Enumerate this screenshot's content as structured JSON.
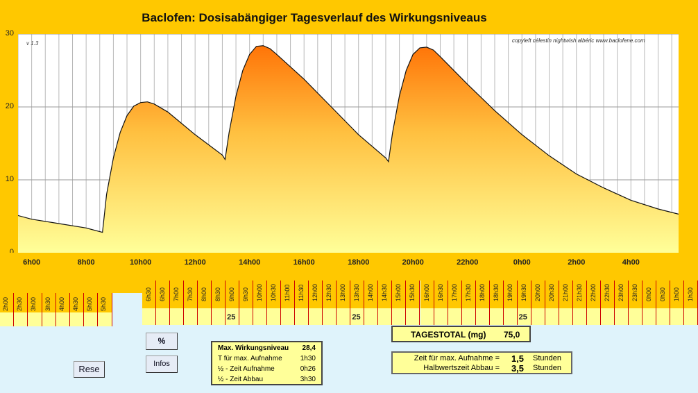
{
  "chart_data": {
    "type": "area",
    "title": "Baclofen: Dosisabängiger Tagesverlauf des Wirkungsniveaus",
    "version": "v 1.3",
    "copyright": "copyleft  célestin  nightwish  albéric  www.baclofene.com",
    "ylim": [
      0,
      30
    ],
    "yticks": [
      0,
      10,
      20,
      30
    ],
    "xlim": [
      5.5,
      29.75
    ],
    "xunit": "hour",
    "xticks": [
      {
        "x": 6,
        "label": "6h00"
      },
      {
        "x": 8,
        "label": "8h00"
      },
      {
        "x": 10,
        "label": "10h00"
      },
      {
        "x": 12,
        "label": "12h00"
      },
      {
        "x": 14,
        "label": "14h00"
      },
      {
        "x": 16,
        "label": "16h00"
      },
      {
        "x": 18,
        "label": "18h00"
      },
      {
        "x": 20,
        "label": "20h00"
      },
      {
        "x": 22,
        "label": "22h00"
      },
      {
        "x": 24,
        "label": "0h00"
      },
      {
        "x": 26,
        "label": "2h00"
      },
      {
        "x": 28,
        "label": "4h00"
      }
    ],
    "grid": true,
    "series": [
      {
        "values_x": [
          5.5,
          6,
          7,
          8,
          8.6,
          8.75,
          9,
          9.25,
          9.5,
          9.75,
          10,
          10.25,
          10.5,
          11,
          12,
          13,
          13.1,
          13.25,
          13.5,
          13.75,
          14,
          14.25,
          14.5,
          14.75,
          15,
          16,
          17,
          18,
          19,
          19.1,
          19.25,
          19.5,
          19.75,
          20,
          20.25,
          20.5,
          20.75,
          21,
          22,
          23,
          24,
          25,
          26,
          27,
          28,
          29,
          29.75
        ],
        "values_y": [
          5.1,
          4.6,
          4.0,
          3.4,
          2.8,
          8.0,
          13.0,
          16.5,
          18.8,
          20.1,
          20.6,
          20.7,
          20.4,
          19.3,
          16.2,
          13.4,
          12.8,
          16.5,
          21.5,
          25.0,
          27.2,
          28.3,
          28.4,
          28.0,
          27.2,
          23.8,
          20.0,
          16.2,
          13.0,
          12.5,
          16.5,
          21.5,
          25.0,
          27.2,
          28.1,
          28.2,
          27.8,
          26.9,
          23.1,
          19.5,
          16.2,
          13.3,
          10.8,
          8.9,
          7.2,
          6.0,
          5.3
        ],
        "gradient_top": "#ff6a00",
        "gradient_bottom": "#ffff99"
      }
    ]
  },
  "schedule": {
    "top_slots": [
      "6h30",
      "6h30",
      "7h00",
      "7h30",
      "8h00",
      "8h30",
      "9h00",
      "9h30",
      "10h00",
      "10h30",
      "11h00",
      "11h30",
      "12h00",
      "12h30",
      "13h00",
      "13h30",
      "14h00",
      "14h30",
      "15h00",
      "15h30",
      "16h00",
      "16h30",
      "17h00",
      "17h30",
      "18h00",
      "18h30",
      "19h00",
      "19h30",
      "20h00",
      "20h30",
      "21h00",
      "21h30",
      "22h00",
      "22h30",
      "23h00",
      "23h30",
      "0h00",
      "0h30",
      "1h00",
      "1h30"
    ],
    "left_slots": [
      "2h00",
      "2h30",
      "3h00",
      "3h30",
      "4h00",
      "4h30",
      "5h00",
      "5h30"
    ],
    "doses": [
      {
        "col": 6,
        "value": "25"
      },
      {
        "col": 15,
        "value": "25"
      },
      {
        "col": 27,
        "value": "25"
      }
    ]
  },
  "buttons": {
    "percent": "%",
    "infos": "Infos",
    "reset": "Rese"
  },
  "stats": {
    "max_level_label": "Max. Wirkungsniveau",
    "max_level_value": "28,4",
    "t_max_label": "T für max. Aufnahme",
    "t_max_value": "1h30",
    "half_absorb_label": "½ - Zeit Aufnahme",
    "half_absorb_value": "0h26",
    "half_elim_label": "½ - Zeit Abbau",
    "half_elim_value": "3h30"
  },
  "total": {
    "label": "TAGESTOTAL (mg)",
    "value": "75,0"
  },
  "params": {
    "absorb_label": "Zeit für max. Aufnahme  =",
    "absorb_value": "1,5",
    "absorb_unit": "Stunden",
    "halflife_label": "Halbwertszeit Abbau  =",
    "halflife_value": "3,5",
    "halflife_unit": "Stunden"
  }
}
